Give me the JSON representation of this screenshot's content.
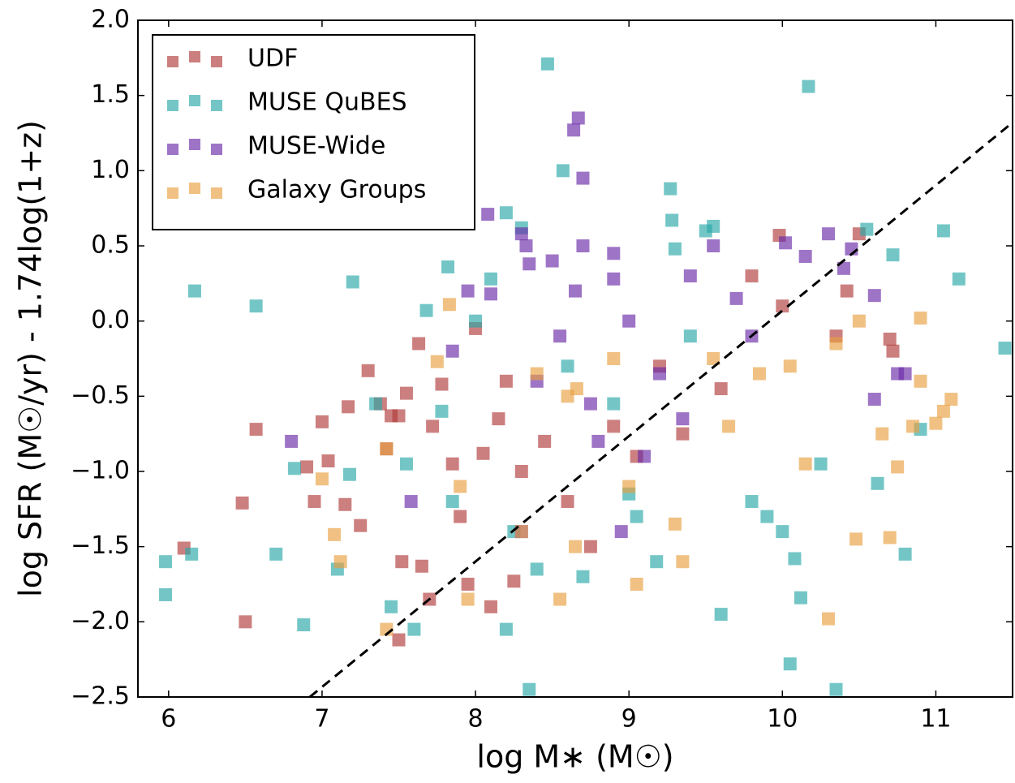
{
  "chart_data": {
    "type": "scatter",
    "xlabel": "log M∗ (M☉)",
    "ylabel": "log SFR (M☉/yr) - 1.74log(1+z)",
    "xlim": [
      5.8,
      11.5
    ],
    "ylim": [
      -2.5,
      2.0
    ],
    "xticks": [
      6,
      7,
      8,
      9,
      10,
      11
    ],
    "yticks": [
      {
        "value": -2.5,
        "label": "−2.5"
      },
      {
        "value": -2.0,
        "label": "−2.0"
      },
      {
        "value": -1.5,
        "label": "−1.5"
      },
      {
        "value": -1.0,
        "label": "−1.0"
      },
      {
        "value": -0.5,
        "label": "−0.5"
      },
      {
        "value": 0.0,
        "label": "0.0"
      },
      {
        "value": 0.5,
        "label": "0.5"
      },
      {
        "value": 1.0,
        "label": "1.0"
      },
      {
        "value": 1.5,
        "label": "1.5"
      },
      {
        "value": 2.0,
        "label": "2.0"
      }
    ],
    "legend": "upper left",
    "alpha": 0.65,
    "fit_line": {
      "x": [
        6.92,
        11.5
      ],
      "y": [
        -2.5,
        1.32
      ],
      "color": "#000000"
    },
    "series": [
      {
        "name": "UDF",
        "color": "#b03a3a",
        "x": [
          6.1,
          6.48,
          6.5,
          6.57,
          6.9,
          6.95,
          7.0,
          7.04,
          7.15,
          7.17,
          7.25,
          7.3,
          7.38,
          7.42,
          7.45,
          7.5,
          7.55,
          7.5,
          7.52,
          7.63,
          7.65,
          7.7,
          7.72,
          7.78,
          7.85,
          7.9,
          7.95,
          8.0,
          8.05,
          8.1,
          8.15,
          8.2,
          8.25,
          8.3,
          8.45,
          8.6,
          8.75,
          8.9,
          9.05,
          9.2,
          9.35,
          9.6,
          9.8,
          9.98,
          10.0,
          10.35,
          10.5,
          10.7,
          10.72,
          10.42
        ],
        "values": [
          -1.51,
          -1.21,
          -2.0,
          -0.72,
          -0.97,
          -1.2,
          -0.67,
          -0.93,
          -1.22,
          -0.57,
          -1.36,
          -0.33,
          -0.55,
          -0.85,
          -0.63,
          -0.63,
          -0.48,
          -2.12,
          -1.6,
          -0.15,
          -1.63,
          -1.85,
          -0.7,
          -0.42,
          -0.95,
          -1.3,
          -1.75,
          -0.05,
          -0.88,
          -1.9,
          -0.65,
          -0.4,
          -1.73,
          -1.0,
          -0.8,
          -1.2,
          -1.5,
          -0.7,
          -0.9,
          -0.3,
          -0.75,
          -0.45,
          0.3,
          0.57,
          0.1,
          -0.1,
          0.58,
          -0.12,
          -0.2,
          0.2
        ]
      },
      {
        "name": "MUSE QuBES",
        "color": "#2aa8a8",
        "x": [
          5.98,
          5.98,
          6.15,
          6.17,
          6.57,
          6.7,
          6.82,
          6.88,
          7.1,
          7.18,
          7.2,
          7.35,
          7.45,
          7.55,
          7.6,
          7.68,
          7.78,
          7.82,
          7.85,
          8.0,
          8.1,
          8.2,
          8.2,
          8.25,
          8.3,
          8.35,
          8.4,
          8.47,
          8.57,
          8.7,
          8.9,
          9.05,
          9.18,
          9.27,
          9.28,
          9.3,
          9.5,
          9.55,
          9.6,
          9.8,
          9.9,
          10.0,
          10.08,
          10.05,
          10.12,
          10.17,
          10.25,
          10.35,
          10.55,
          10.62,
          10.72,
          10.9,
          11.05,
          11.15,
          11.45,
          10.8,
          9.0,
          8.6,
          9.4
        ],
        "values": [
          -1.6,
          -1.82,
          -1.55,
          0.2,
          0.1,
          -1.55,
          -0.98,
          -2.02,
          -1.65,
          -1.02,
          0.26,
          -0.55,
          -1.9,
          -0.95,
          -2.05,
          0.07,
          -0.6,
          0.36,
          -1.2,
          0.0,
          0.28,
          -2.05,
          0.72,
          -1.4,
          0.62,
          -2.45,
          -1.65,
          1.71,
          1.0,
          -1.7,
          -0.55,
          -1.3,
          -1.6,
          0.88,
          0.67,
          0.48,
          0.6,
          0.63,
          -1.95,
          -1.2,
          -1.3,
          -1.4,
          -1.58,
          -2.28,
          -1.84,
          1.56,
          -0.95,
          -2.45,
          0.61,
          -1.08,
          0.44,
          -0.72,
          0.6,
          0.28,
          -0.18,
          -1.55,
          -1.15,
          -0.3,
          -0.1
        ]
      },
      {
        "name": "MUSE-Wide",
        "color": "#6a2aa8",
        "x": [
          6.8,
          7.58,
          7.85,
          7.95,
          8.1,
          8.08,
          8.3,
          8.33,
          8.35,
          8.5,
          8.64,
          8.67,
          8.7,
          8.65,
          8.7,
          8.4,
          8.55,
          8.75,
          8.9,
          8.9,
          9.0,
          9.1,
          9.2,
          9.4,
          9.55,
          9.7,
          9.8,
          10.02,
          10.15,
          10.3,
          10.4,
          10.45,
          10.6,
          10.75,
          10.8,
          10.6,
          8.3,
          8.8,
          9.35,
          8.95
        ],
        "values": [
          -0.8,
          -1.2,
          -0.2,
          0.2,
          0.18,
          0.71,
          0.58,
          0.5,
          0.38,
          0.4,
          1.27,
          1.35,
          0.95,
          0.2,
          0.5,
          -0.4,
          -0.1,
          -0.55,
          0.28,
          0.45,
          0.0,
          -0.9,
          -0.35,
          0.3,
          0.5,
          0.15,
          -0.1,
          0.52,
          0.43,
          0.58,
          0.35,
          0.48,
          0.17,
          -0.35,
          -0.35,
          -0.52,
          -1.4,
          -0.8,
          -0.65,
          -1.4
        ]
      },
      {
        "name": "Galaxy Groups",
        "color": "#e8a040",
        "x": [
          7.0,
          7.08,
          7.12,
          7.42,
          7.42,
          7.75,
          7.83,
          7.9,
          7.95,
          8.3,
          8.4,
          8.55,
          8.6,
          8.66,
          8.9,
          9.0,
          9.3,
          9.35,
          9.55,
          9.65,
          9.85,
          10.05,
          10.15,
          10.3,
          10.35,
          10.5,
          10.48,
          10.65,
          10.7,
          10.75,
          10.85,
          10.9,
          10.9,
          11.0,
          11.05,
          11.1,
          9.05,
          8.65
        ],
        "values": [
          -1.05,
          -1.42,
          -1.6,
          -0.85,
          -2.05,
          -0.27,
          0.11,
          -1.1,
          -1.85,
          -1.4,
          -0.35,
          -1.85,
          -0.5,
          -0.45,
          -0.25,
          -1.1,
          -1.35,
          -1.6,
          -0.25,
          -0.7,
          -0.35,
          -0.3,
          -0.95,
          -1.98,
          -0.15,
          0.0,
          -1.45,
          -0.75,
          -1.44,
          -0.97,
          -0.7,
          -0.4,
          0.02,
          -0.68,
          -0.6,
          -0.52,
          -1.75,
          -1.5
        ]
      }
    ]
  }
}
